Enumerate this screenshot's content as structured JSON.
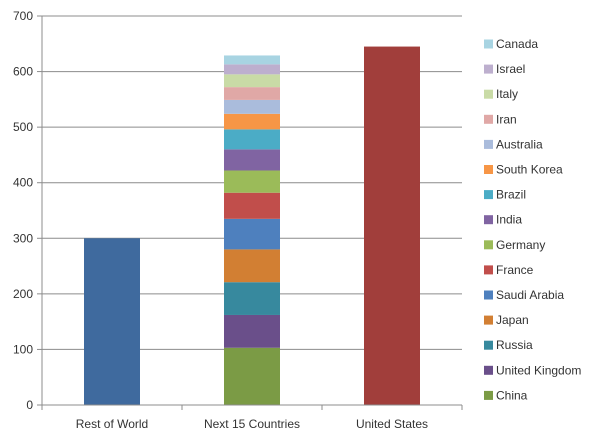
{
  "chart_data": {
    "type": "bar",
    "stacked": true,
    "categories": [
      "Rest of World",
      "Next 15 Countries",
      "United States"
    ],
    "ylim": [
      0,
      700
    ],
    "yticks": [
      0,
      100,
      200,
      300,
      400,
      500,
      600,
      700
    ],
    "grid": true,
    "legend_placement": "right",
    "series": [
      {
        "values": [
          300,
          0,
          0
        ],
        "color": "#3F6A9E"
      },
      {
        "values": [
          0,
          0,
          645
        ],
        "color": "#A13E3B"
      },
      {
        "name": "China",
        "values": [
          0,
          103,
          0
        ],
        "color": "#7B9B45"
      },
      {
        "name": "United Kingdom",
        "values": [
          0,
          59,
          0
        ],
        "color": "#6A4F8A"
      },
      {
        "name": "Russia",
        "values": [
          0,
          59,
          0
        ],
        "color": "#37899E"
      },
      {
        "name": "Japan",
        "values": [
          0,
          59,
          0
        ],
        "color": "#D27F33"
      },
      {
        "name": "Saudi Arabia",
        "values": [
          0,
          55,
          0
        ],
        "color": "#4E80BE"
      },
      {
        "name": "France",
        "values": [
          0,
          47,
          0
        ],
        "color": "#C14E4B"
      },
      {
        "name": "Germany",
        "values": [
          0,
          40,
          0
        ],
        "color": "#9BBB59"
      },
      {
        "name": "India",
        "values": [
          0,
          38,
          0
        ],
        "color": "#8064A2"
      },
      {
        "name": "Brazil",
        "values": [
          0,
          36,
          0
        ],
        "color": "#4BACC6"
      },
      {
        "name": "South Korea",
        "values": [
          0,
          28,
          0
        ],
        "color": "#F79646"
      },
      {
        "name": "Australia",
        "values": [
          0,
          25,
          0
        ],
        "color": "#AABCDC"
      },
      {
        "name": "Iran",
        "values": [
          0,
          23,
          0
        ],
        "color": "#E0A8A6"
      },
      {
        "name": "Italy",
        "values": [
          0,
          23,
          0
        ],
        "color": "#C9DBA6"
      },
      {
        "name": "Israel",
        "values": [
          0,
          18,
          0
        ],
        "color": "#BDAFCE"
      },
      {
        "name": "Canada",
        "values": [
          0,
          16,
          0
        ],
        "color": "#A8D4E2"
      }
    ]
  }
}
